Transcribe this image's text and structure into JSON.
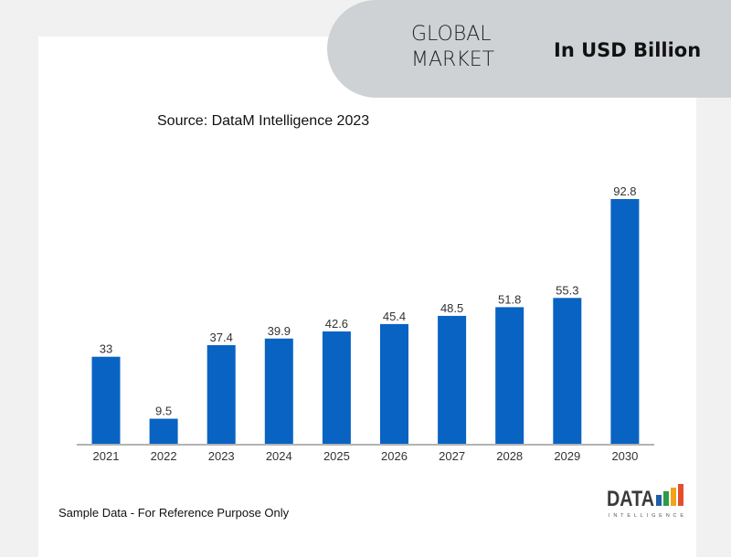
{
  "header": {
    "title_line1": "GLOBAL",
    "title_line2": "MARKET",
    "unit": "In USD Billion"
  },
  "source": "Source: DataM Intelligence 2023",
  "footnote": "Sample Data - For Reference Purpose Only",
  "logo": {
    "text": "DATA",
    "subtext": "INTELLIGENCE"
  },
  "chart_data": {
    "type": "bar",
    "categories": [
      "2021",
      "2022",
      "2023",
      "2024",
      "2025",
      "2026",
      "2027",
      "2028",
      "2029",
      "2030"
    ],
    "values": [
      33,
      9.5,
      37.4,
      39.9,
      42.6,
      45.4,
      48.5,
      51.8,
      55.3,
      92.8
    ],
    "data_labels": [
      "33",
      "9.5",
      "37.4",
      "39.9",
      "42.6",
      "45.4",
      "48.5",
      "51.8",
      "55.3",
      "92.8"
    ],
    "title": "",
    "xlabel": "",
    "ylabel": "",
    "grid": false,
    "legend": "none",
    "colors": {
      "bar": "#0863c3",
      "axis": "#9a9a9a",
      "label": "#333333"
    }
  }
}
